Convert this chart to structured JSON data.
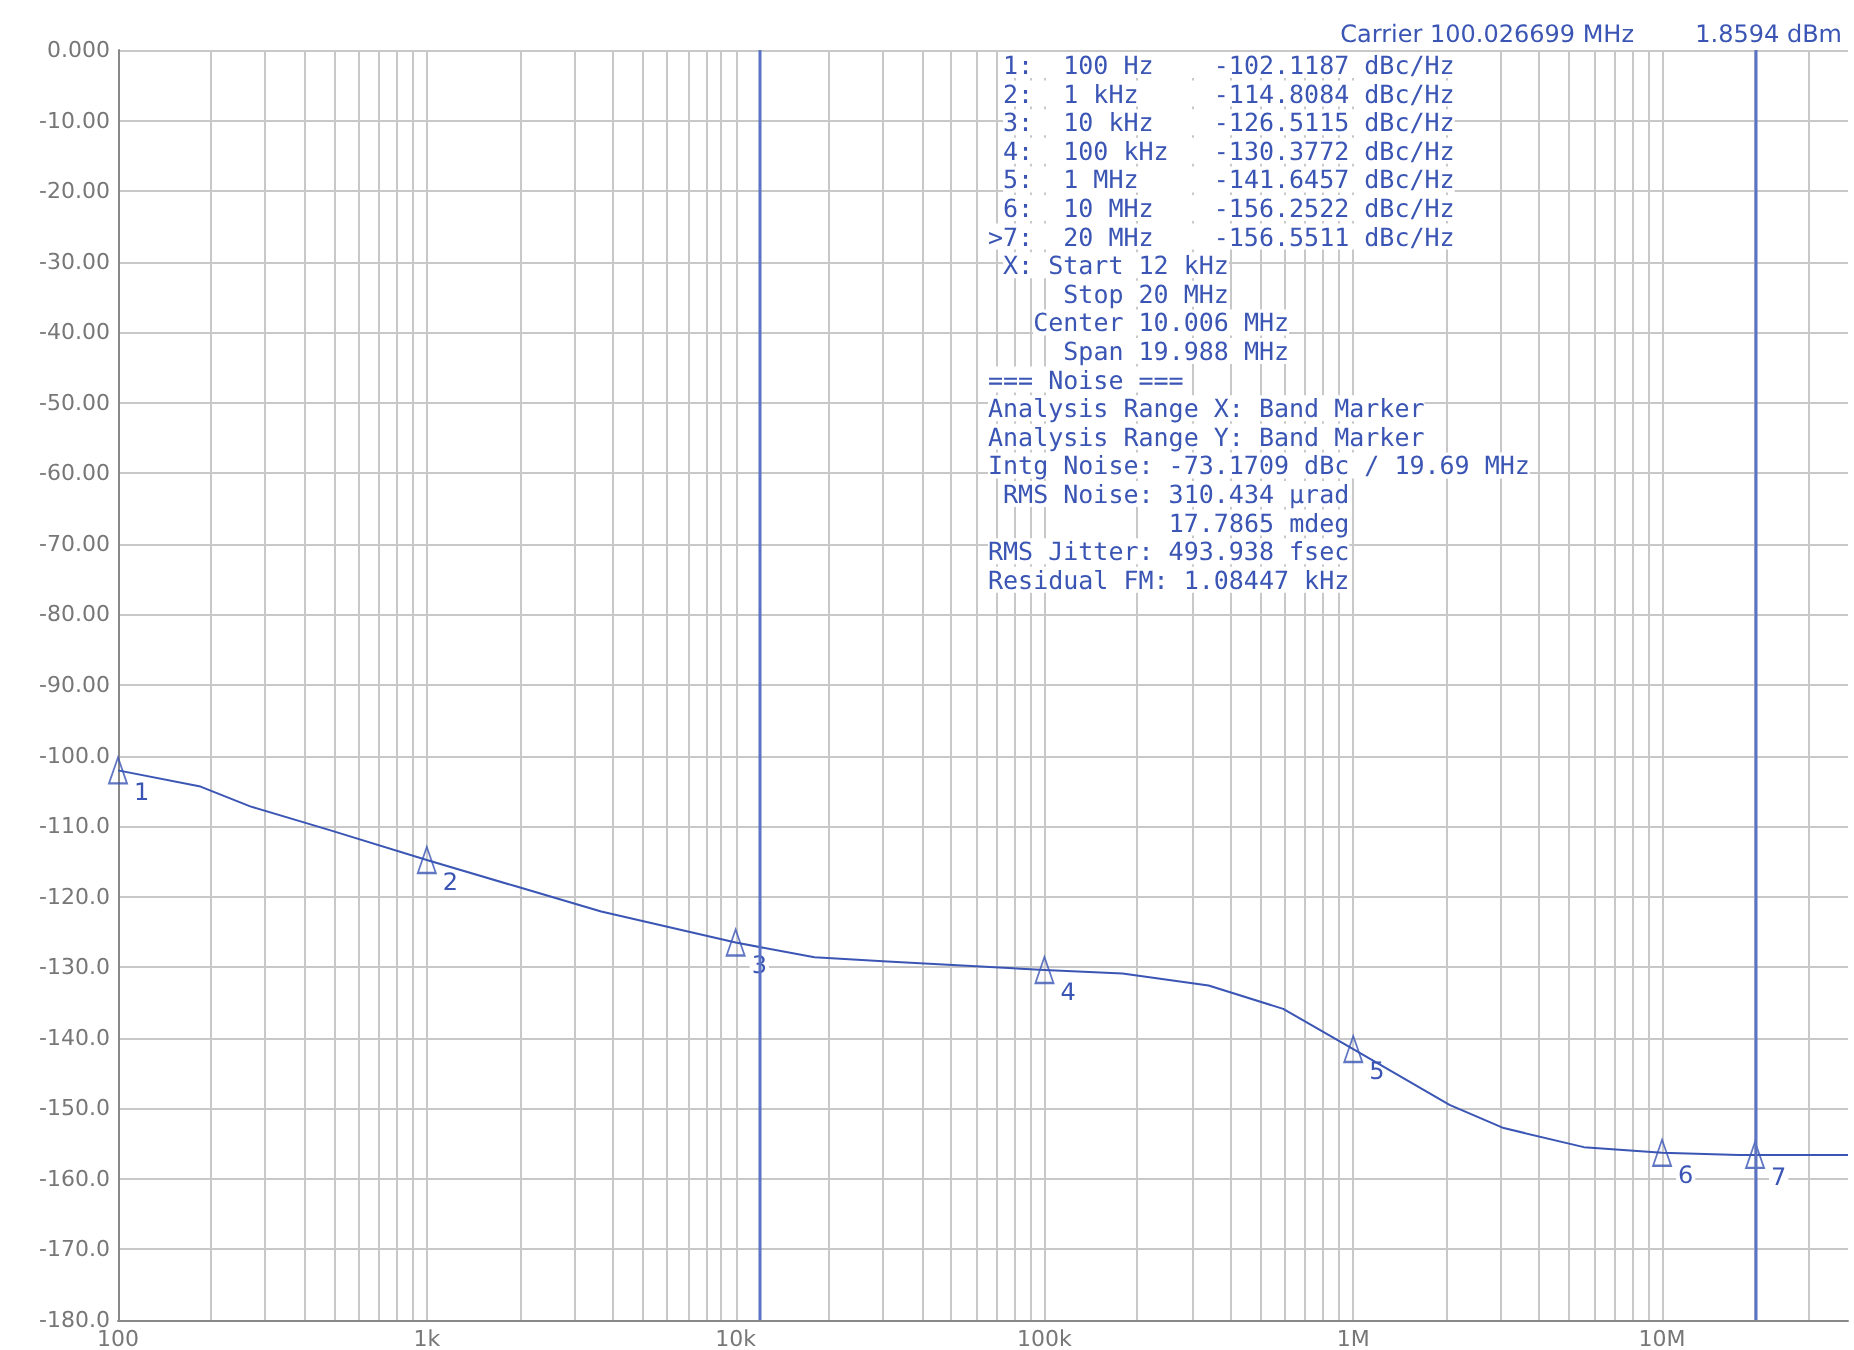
{
  "chart_data": {
    "type": "line",
    "x": [
      100,
      185,
      268,
      488,
      1000,
      1930,
      3670,
      10000,
      18000,
      31000,
      100000,
      179000,
      340000,
      593000,
      1000000,
      2050000,
      3070000,
      5580000,
      10000000,
      17700000,
      20000000,
      40000000
    ],
    "series": [
      {
        "color": "#3a55b4",
        "marker": "none",
        "values": [
          -102.1,
          -104.4,
          -107.2,
          -110.6,
          -114.8,
          -118.5,
          -122.1,
          -126.5,
          -128.6,
          -129.2,
          -130.4,
          -130.9,
          -132.6,
          -135.9,
          -141.6,
          -149.5,
          -152.8,
          -155.5,
          -156.3,
          -156.6,
          -156.6,
          -156.6
        ]
      },
      {
        "type": "scatter",
        "color": "#3a55b4",
        "marker": "triangle",
        "x": [
          100,
          1000,
          10000,
          100000,
          1000000,
          10000000,
          20000000
        ],
        "values": [
          -102.1,
          -114.8,
          -126.5,
          -130.4,
          -141.6,
          -156.3,
          -156.6
        ]
      }
    ],
    "log": "x",
    "grid": true,
    "xlim": [
      100,
      40000000
    ],
    "xticks": [
      {
        "value": 100,
        "label": "100"
      },
      {
        "value": 200,
        "label": null
      },
      {
        "value": 300,
        "label": null
      },
      {
        "value": 400,
        "label": null
      },
      {
        "value": 500,
        "label": null
      },
      {
        "value": 600,
        "label": null
      },
      {
        "value": 700,
        "label": null
      },
      {
        "value": 800,
        "label": null
      },
      {
        "value": 900,
        "label": null
      },
      {
        "value": 1000,
        "label": "1k"
      },
      {
        "value": 2000,
        "label": null
      },
      {
        "value": 3000,
        "label": null
      },
      {
        "value": 4000,
        "label": null
      },
      {
        "value": 5000,
        "label": null
      },
      {
        "value": 6000,
        "label": null
      },
      {
        "value": 7000,
        "label": null
      },
      {
        "value": 8000,
        "label": null
      },
      {
        "value": 9000,
        "label": null
      },
      {
        "value": 10000,
        "label": "10k"
      },
      {
        "value": 20000,
        "label": null
      },
      {
        "value": 30000,
        "label": null
      },
      {
        "value": 40000,
        "label": null
      },
      {
        "value": 50000,
        "label": null
      },
      {
        "value": 60000,
        "label": null
      },
      {
        "value": 70000,
        "label": null
      },
      {
        "value": 80000,
        "label": null
      },
      {
        "value": 90000,
        "label": null
      },
      {
        "value": 100000,
        "label": "100k"
      },
      {
        "value": 200000,
        "label": null
      },
      {
        "value": 300000,
        "label": null
      },
      {
        "value": 400000,
        "label": null
      },
      {
        "value": 500000,
        "label": null
      },
      {
        "value": 600000,
        "label": null
      },
      {
        "value": 700000,
        "label": null
      },
      {
        "value": 800000,
        "label": null
      },
      {
        "value": 900000,
        "label": null
      },
      {
        "value": 1000000,
        "label": "1M"
      },
      {
        "value": 2000000,
        "label": null
      },
      {
        "value": 3000000,
        "label": null
      },
      {
        "value": 4000000,
        "label": null
      },
      {
        "value": 5000000,
        "label": null
      },
      {
        "value": 6000000,
        "label": null
      },
      {
        "value": 7000000,
        "label": null
      },
      {
        "value": 8000000,
        "label": null
      },
      {
        "value": 9000000,
        "label": null
      },
      {
        "value": 10000000,
        "label": "10M"
      },
      {
        "value": 20000000,
        "label": null
      },
      {
        "value": 30000000,
        "label": null
      }
    ],
    "ylim": [
      -180,
      0
    ],
    "yticks": [
      {
        "value": 0,
        "label": "0.000"
      },
      {
        "value": -10,
        "label": "-10.00"
      },
      {
        "value": -20,
        "label": "-20.00"
      },
      {
        "value": -30,
        "label": "-30.00"
      },
      {
        "value": -40,
        "label": "-40.00"
      },
      {
        "value": -50,
        "label": "-50.00"
      },
      {
        "value": -60,
        "label": "-60.00"
      },
      {
        "value": -70,
        "label": "-70.00"
      },
      {
        "value": -80,
        "label": "-80.00"
      },
      {
        "value": -90,
        "label": "-90.00"
      },
      {
        "value": -100,
        "label": "-100.0"
      },
      {
        "value": -110,
        "label": "-110.0"
      },
      {
        "value": -120,
        "label": "-120.0"
      },
      {
        "value": -130,
        "label": "-130.0"
      },
      {
        "value": -140,
        "label": "-140.0"
      },
      {
        "value": -150,
        "label": "-150.0"
      },
      {
        "value": -160,
        "label": "-160.0"
      },
      {
        "value": -170,
        "label": "-170.0"
      },
      {
        "value": -180,
        "label": "-180.0"
      }
    ],
    "ref_lines": [
      {
        "axis": "x",
        "value": 12000,
        "color": "#5b73c4"
      },
      {
        "axis": "x",
        "value": 20000000,
        "color": "#5b73c4"
      }
    ],
    "annotations": [
      "Carrier 100.026699 MHz",
      "1.8594 dBm",
      " 1:  100 Hz    -102.1187 dBc/Hz",
      " 2:  1 kHz     -114.8084 dBc/Hz",
      " 3:  10 kHz    -126.5115 dBc/Hz",
      " 4:  100 kHz   -130.3772 dBc/Hz",
      " 5:  1 MHz     -141.6457 dBc/Hz",
      " 6:  10 MHz    -156.2522 dBc/Hz",
      ">7:  20 MHz    -156.5511 dBc/Hz",
      " X: Start 12 kHz",
      "     Stop 20 MHz",
      "   Center 10.006 MHz",
      "     Span 19.988 MHz",
      "=== Noise ===",
      "Analysis Range X: Band Marker",
      "Analysis Range Y: Band Marker",
      "Intg Noise: -73.1709 dBc / 19.69 MHz",
      " RMS Noise: 310.434 µrad",
      "            17.7865 mdeg",
      "RMS Jitter: 493.938 fsec",
      "Residual FM: 1.08447 kHz",
      {
        "text": "1",
        "x": 100,
        "y": -102.1
      },
      {
        "text": "2",
        "x": 1000,
        "y": -114.8
      },
      {
        "text": "3",
        "x": 10000,
        "y": -126.5
      },
      {
        "text": "4",
        "x": 100000,
        "y": -130.4
      },
      {
        "text": "5",
        "x": 1000000,
        "y": -141.6
      },
      {
        "text": "6",
        "x": 10000000,
        "y": -156.3
      },
      {
        "text": "7",
        "x": 20000000,
        "y": -156.6
      }
    ]
  }
}
